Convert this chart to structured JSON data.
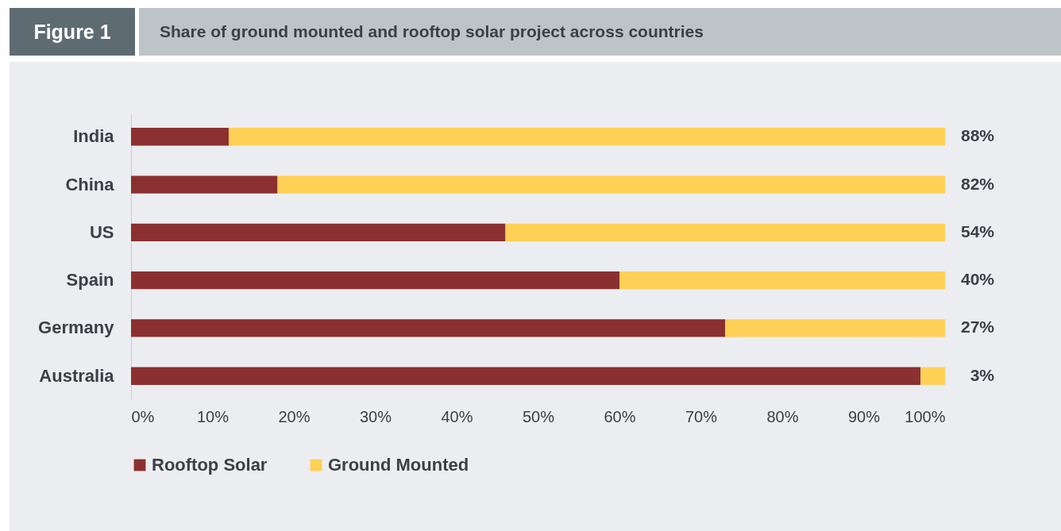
{
  "chart_data": {
    "type": "bar",
    "orientation": "horizontal",
    "stacked": true,
    "title": "Share of ground mounted and rooftop solar project across countries",
    "annotations": [
      "Figure 1"
    ],
    "categories": [
      "India",
      "China",
      "US",
      "Spain",
      "Germany",
      "Australia"
    ],
    "series": [
      {
        "name": "Rooftop Solar",
        "color": "#8b3031",
        "values": [
          12,
          18,
          46,
          60,
          73,
          97
        ]
      },
      {
        "name": "Ground Mounted",
        "color": "#ffd055",
        "values": [
          88,
          82,
          54,
          40,
          27,
          3
        ],
        "value_labels": [
          "88%",
          "82%",
          "54%",
          "40%",
          "27%",
          "3%"
        ]
      }
    ],
    "xlim": [
      0,
      100
    ],
    "xticks": [
      {
        "value": 0,
        "label": "0%"
      },
      {
        "value": 10,
        "label": "10%"
      },
      {
        "value": 20,
        "label": "20%"
      },
      {
        "value": 30,
        "label": "30%"
      },
      {
        "value": 40,
        "label": "40%"
      },
      {
        "value": 50,
        "label": "50%"
      },
      {
        "value": 60,
        "label": "60%"
      },
      {
        "value": 70,
        "label": "70%"
      },
      {
        "value": 80,
        "label": "80%"
      },
      {
        "value": 90,
        "label": "90%"
      },
      {
        "value": 100,
        "label": "100%"
      }
    ],
    "grid": false,
    "legend": "bottom"
  }
}
